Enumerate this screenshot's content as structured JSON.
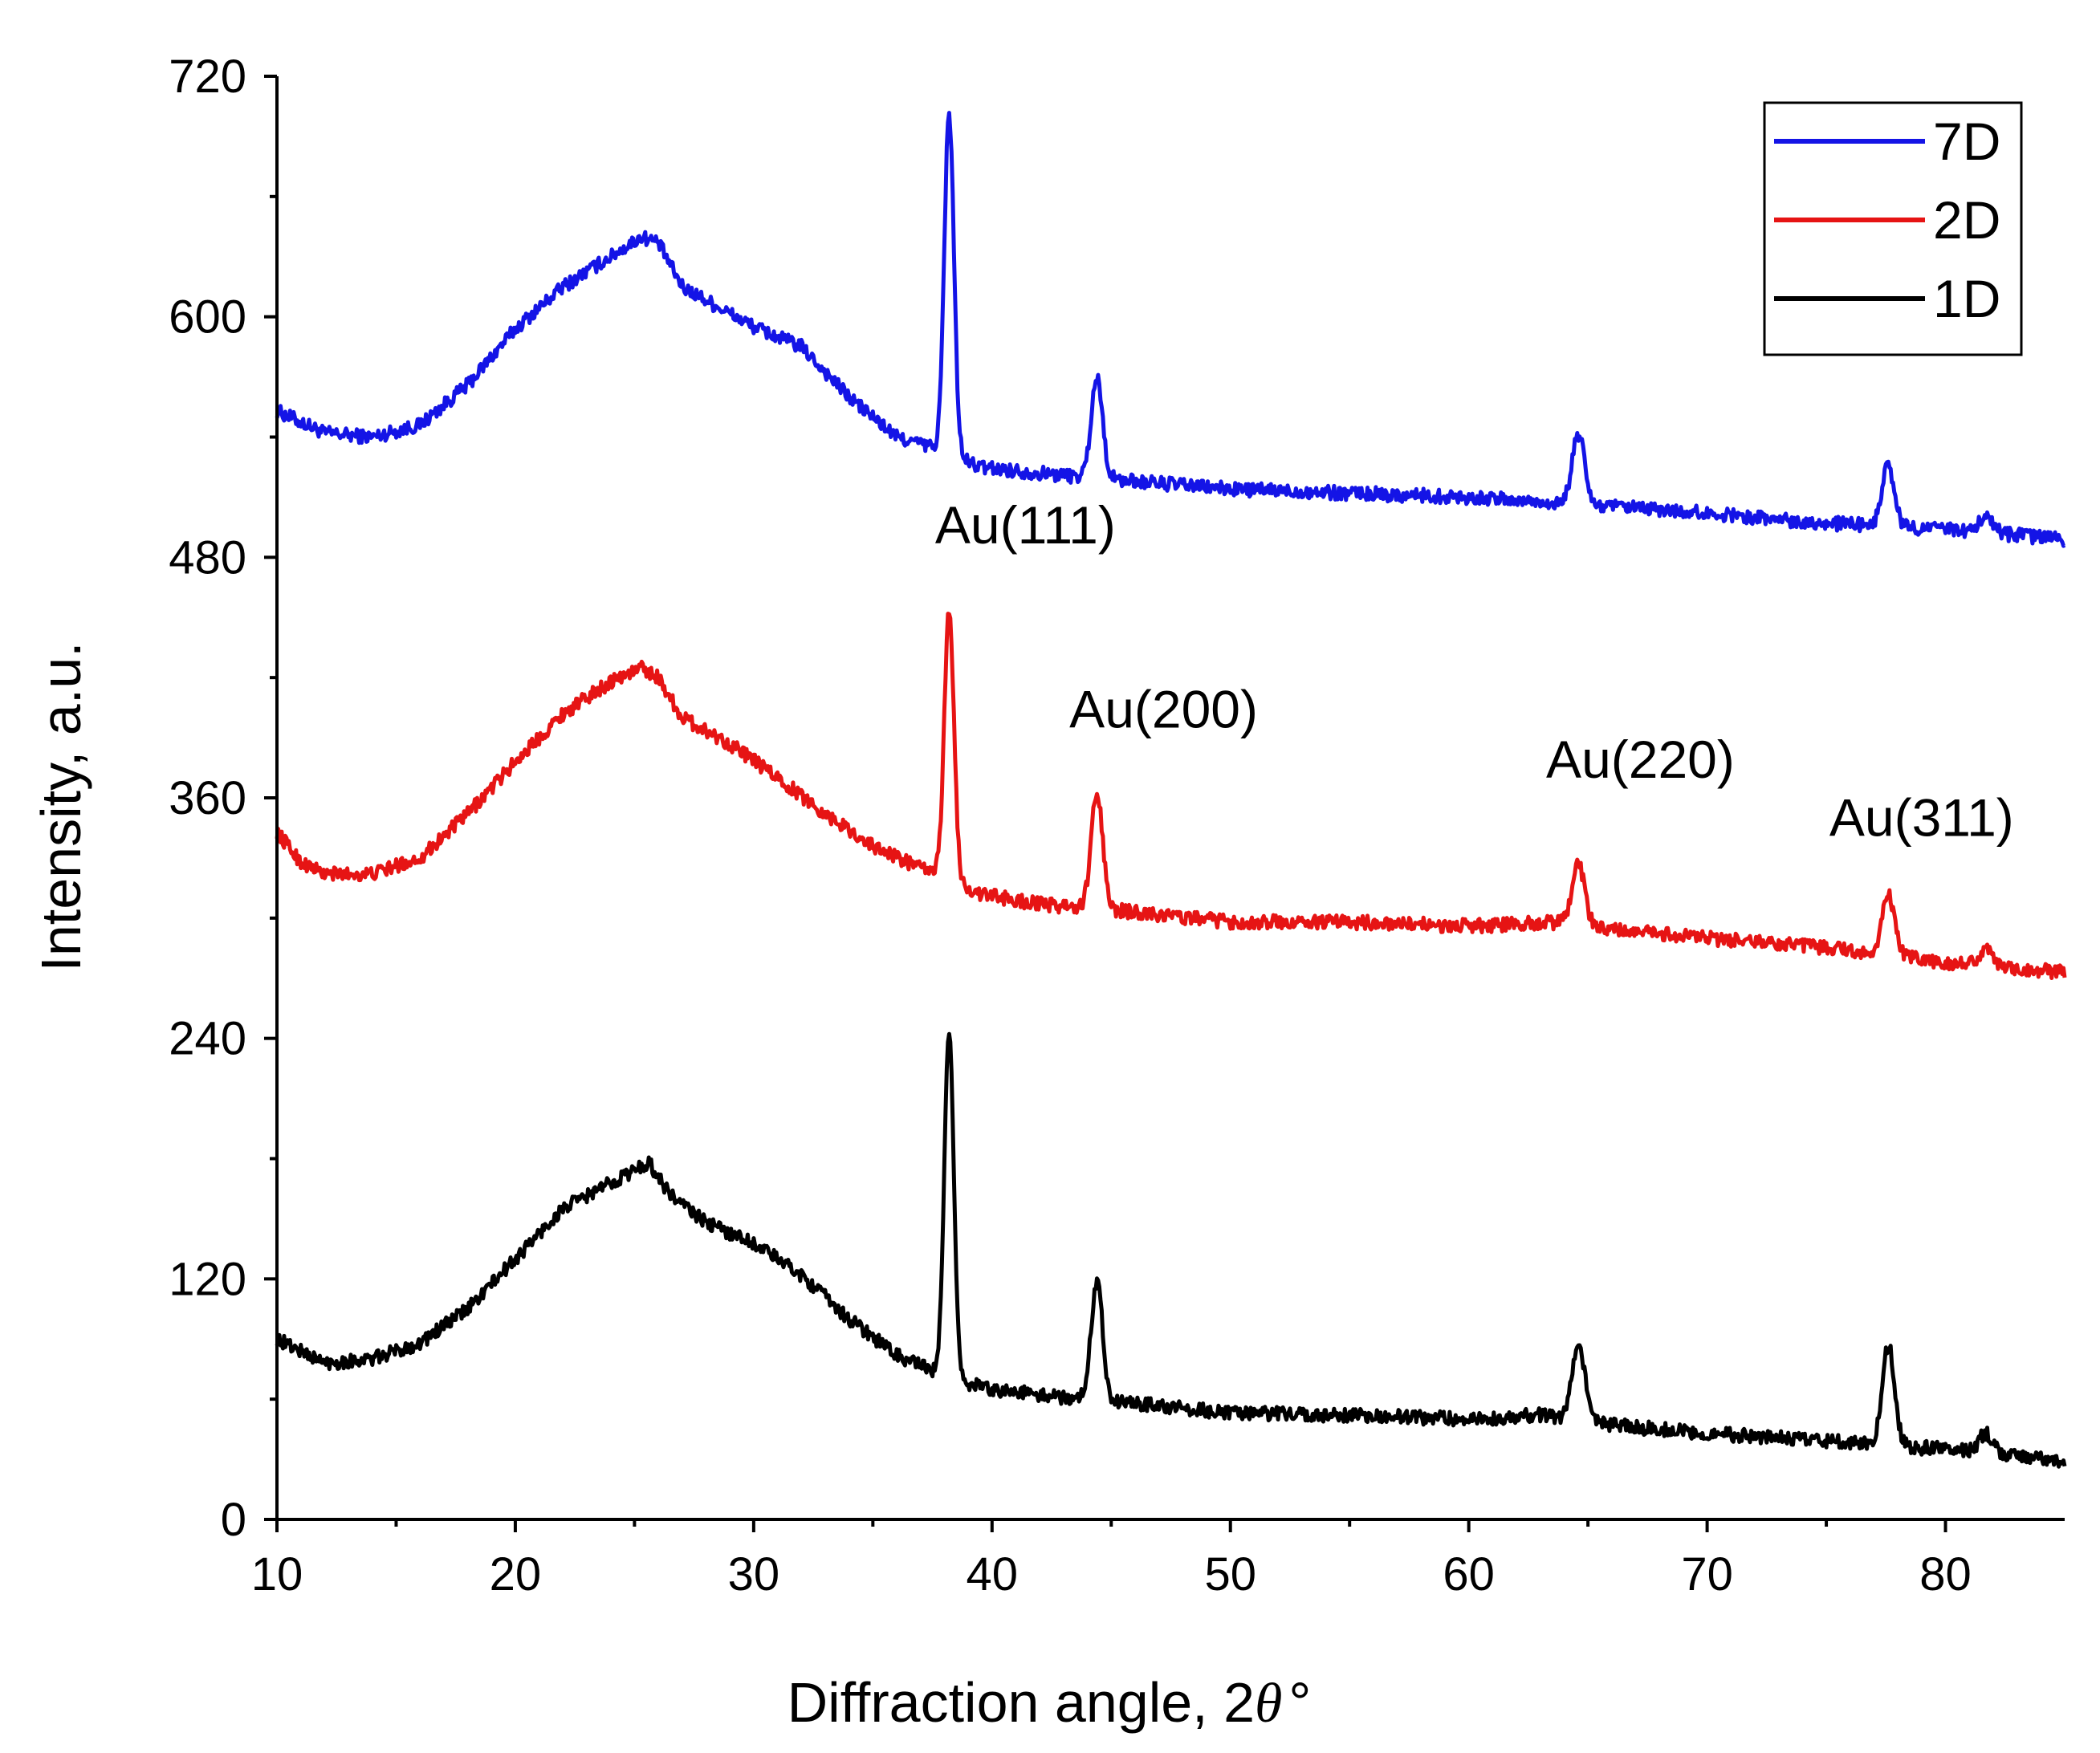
{
  "chart_data": {
    "type": "line",
    "title": "",
    "xlabel": "Diffraction angle, 2θ°",
    "xlabel_prefix": "Diffraction angle, 2",
    "xlabel_theta": "θ",
    "xlabel_deg": "°",
    "ylabel": "Intensity, a.u.",
    "xlim": [
      10,
      85
    ],
    "ylim": [
      0,
      720
    ],
    "xticks": [
      10,
      20,
      30,
      40,
      50,
      60,
      70,
      80
    ],
    "yticks": [
      0,
      120,
      240,
      360,
      480,
      600,
      720
    ],
    "grid": false,
    "legend_position": "top-right",
    "series": [
      {
        "name": "7D",
        "color": "#1414e6",
        "baseline": [
          [
            10,
            553
          ],
          [
            12,
            542
          ],
          [
            14,
            540
          ],
          [
            16,
            546
          ],
          [
            18,
            566
          ],
          [
            20,
            594
          ],
          [
            22,
            615
          ],
          [
            24,
            630
          ],
          [
            25.3,
            640
          ],
          [
            26,
            637
          ],
          [
            27,
            615
          ],
          [
            30,
            595
          ],
          [
            32,
            585
          ],
          [
            34,
            560
          ],
          [
            36,
            540
          ],
          [
            37.5,
            535
          ],
          [
            39.5,
            525
          ],
          [
            42,
            522
          ],
          [
            46,
            518
          ],
          [
            50,
            514
          ],
          [
            55,
            512
          ],
          [
            60,
            510
          ],
          [
            65,
            506
          ],
          [
            70,
            502
          ],
          [
            75,
            497
          ],
          [
            80,
            494
          ],
          [
            85,
            489
          ]
        ],
        "peaks": [
          [
            38.2,
            170,
            0.2
          ],
          [
            44.4,
            50,
            0.24
          ],
          [
            64.6,
            35,
            0.26
          ],
          [
            77.6,
            30,
            0.26
          ],
          [
            81.7,
            8,
            0.3
          ]
        ]
      },
      {
        "name": "2D",
        "color": "#e61414",
        "baseline": [
          [
            10,
            343
          ],
          [
            11,
            328
          ],
          [
            12,
            322
          ],
          [
            14,
            322
          ],
          [
            16,
            330
          ],
          [
            18,
            352
          ],
          [
            20,
            378
          ],
          [
            22,
            402
          ],
          [
            24,
            418
          ],
          [
            25.3,
            425
          ],
          [
            26,
            420
          ],
          [
            27,
            400
          ],
          [
            29,
            387
          ],
          [
            31,
            370
          ],
          [
            33,
            352
          ],
          [
            35,
            336
          ],
          [
            37,
            325
          ],
          [
            37.6,
            323
          ],
          [
            39.5,
            312
          ],
          [
            42,
            307
          ],
          [
            46,
            303
          ],
          [
            50,
            298
          ],
          [
            55,
            298
          ],
          [
            60,
            296
          ],
          [
            64,
            298
          ],
          [
            66,
            294
          ],
          [
            70,
            290
          ],
          [
            75,
            285
          ],
          [
            80,
            278
          ],
          [
            85,
            273
          ]
        ],
        "peaks": [
          [
            38.2,
            135,
            0.2
          ],
          [
            44.4,
            58,
            0.24
          ],
          [
            64.6,
            30,
            0.26
          ],
          [
            77.6,
            30,
            0.26
          ],
          [
            81.7,
            8,
            0.3
          ]
        ]
      },
      {
        "name": "1D",
        "color": "#000000",
        "baseline": [
          [
            10,
            90
          ],
          [
            12,
            78
          ],
          [
            14,
            80
          ],
          [
            16,
            88
          ],
          [
            18,
            105
          ],
          [
            20,
            130
          ],
          [
            22,
            155
          ],
          [
            24,
            168
          ],
          [
            25.6,
            178
          ],
          [
            26.5,
            162
          ],
          [
            28,
            148
          ],
          [
            30,
            138
          ],
          [
            32,
            122
          ],
          [
            34,
            100
          ],
          [
            36,
            82
          ],
          [
            37.5,
            74
          ],
          [
            39.5,
            66
          ],
          [
            42,
            62
          ],
          [
            46,
            58
          ],
          [
            50,
            53
          ],
          [
            55,
            52
          ],
          [
            60,
            50
          ],
          [
            63,
            52
          ],
          [
            66,
            47
          ],
          [
            70,
            43
          ],
          [
            75,
            39
          ],
          [
            80,
            35
          ],
          [
            85,
            29
          ]
        ],
        "peaks": [
          [
            38.2,
            170,
            0.2
          ],
          [
            44.4,
            60,
            0.24
          ],
          [
            64.6,
            40,
            0.26
          ],
          [
            77.6,
            50,
            0.26
          ],
          [
            81.7,
            10,
            0.3
          ]
        ]
      }
    ],
    "annotations": [
      {
        "text": "Au(111)",
        "x": 41.4,
        "y": 487
      },
      {
        "text": "Au(200)",
        "x": 47.2,
        "y": 395
      },
      {
        "text": "Au(220)",
        "x": 67.2,
        "y": 370
      },
      {
        "text": "Au(311)",
        "x": 79.0,
        "y": 341
      }
    ]
  }
}
